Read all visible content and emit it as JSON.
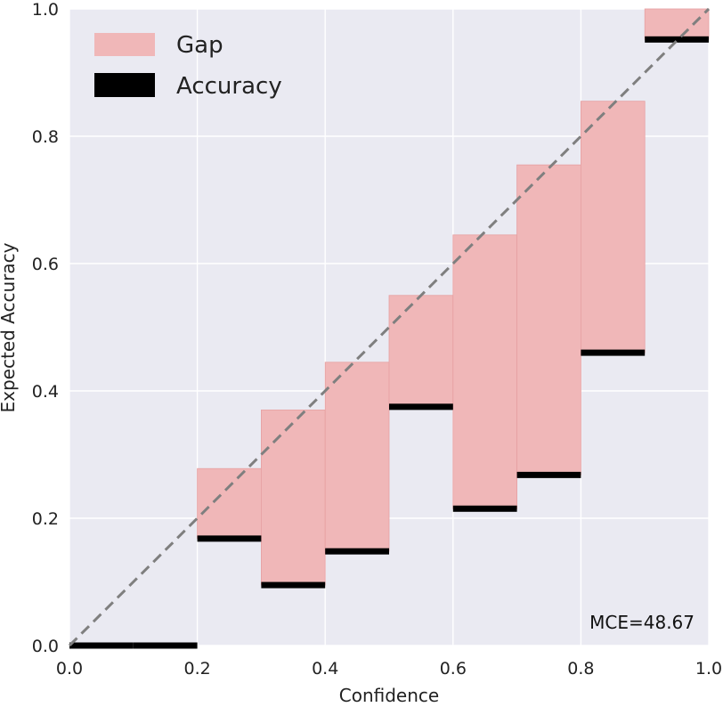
{
  "chart_data": {
    "type": "bar",
    "title": "",
    "xlabel": "Confidence",
    "ylabel": "Expected Accuracy",
    "xlim": [
      0.0,
      1.0
    ],
    "ylim": [
      0.0,
      1.0
    ],
    "grid": true,
    "legend_placement": "top-left",
    "bin_width": 0.1,
    "bins": [
      {
        "x": 0.0,
        "accuracy": 0.0,
        "confidence": 0.0
      },
      {
        "x": 0.1,
        "accuracy": 0.0,
        "confidence": 0.0
      },
      {
        "x": 0.2,
        "accuracy": 0.168,
        "confidence": 0.278
      },
      {
        "x": 0.3,
        "accuracy": 0.095,
        "confidence": 0.37
      },
      {
        "x": 0.4,
        "accuracy": 0.148,
        "confidence": 0.445
      },
      {
        "x": 0.5,
        "accuracy": 0.375,
        "confidence": 0.55
      },
      {
        "x": 0.6,
        "accuracy": 0.215,
        "confidence": 0.645
      },
      {
        "x": 0.7,
        "accuracy": 0.268,
        "confidence": 0.755
      },
      {
        "x": 0.8,
        "accuracy": 0.46,
        "confidence": 0.855
      },
      {
        "x": 0.9,
        "accuracy": 0.952,
        "confidence": 1.0
      }
    ],
    "series": [
      {
        "name": "Gap",
        "color": "#f0b7b8"
      },
      {
        "name": "Accuracy",
        "color": "#000000"
      }
    ],
    "xticks": [
      "0.0",
      "0.2",
      "0.4",
      "0.6",
      "0.8",
      "1.0"
    ],
    "yticks": [
      "0.0",
      "0.2",
      "0.4",
      "0.6",
      "0.8",
      "1.0"
    ],
    "annotation": "MCE=48.67",
    "colors": {
      "background": "#eaeaf2",
      "grid": "#ffffff",
      "diagonal": "#7f7f7f"
    }
  }
}
